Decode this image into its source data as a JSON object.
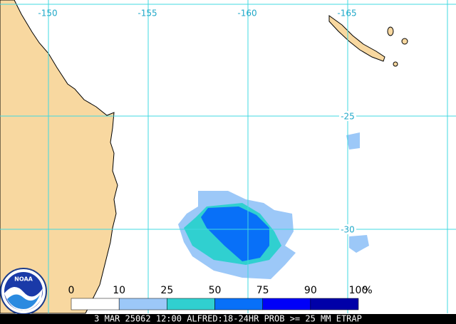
{
  "map": {
    "lon_labels": [
      "-150",
      "-155",
      "-160",
      "-165"
    ],
    "lat_labels": [
      "-25",
      "-30"
    ],
    "legend": {
      "labels": [
        "0",
        "10",
        "25",
        "50",
        "75",
        "90",
        "100"
      ],
      "unit": "%",
      "colors": [
        "#ffffff",
        "#9cc8f8",
        "#30d0d0",
        "#0870f8",
        "#0000f8",
        "#0000a8"
      ]
    },
    "logo": "NOAA",
    "caption": "3 MAR 25062 12:00 ALFRED:18-24HR PROB >= 25 MM ETRAP"
  }
}
